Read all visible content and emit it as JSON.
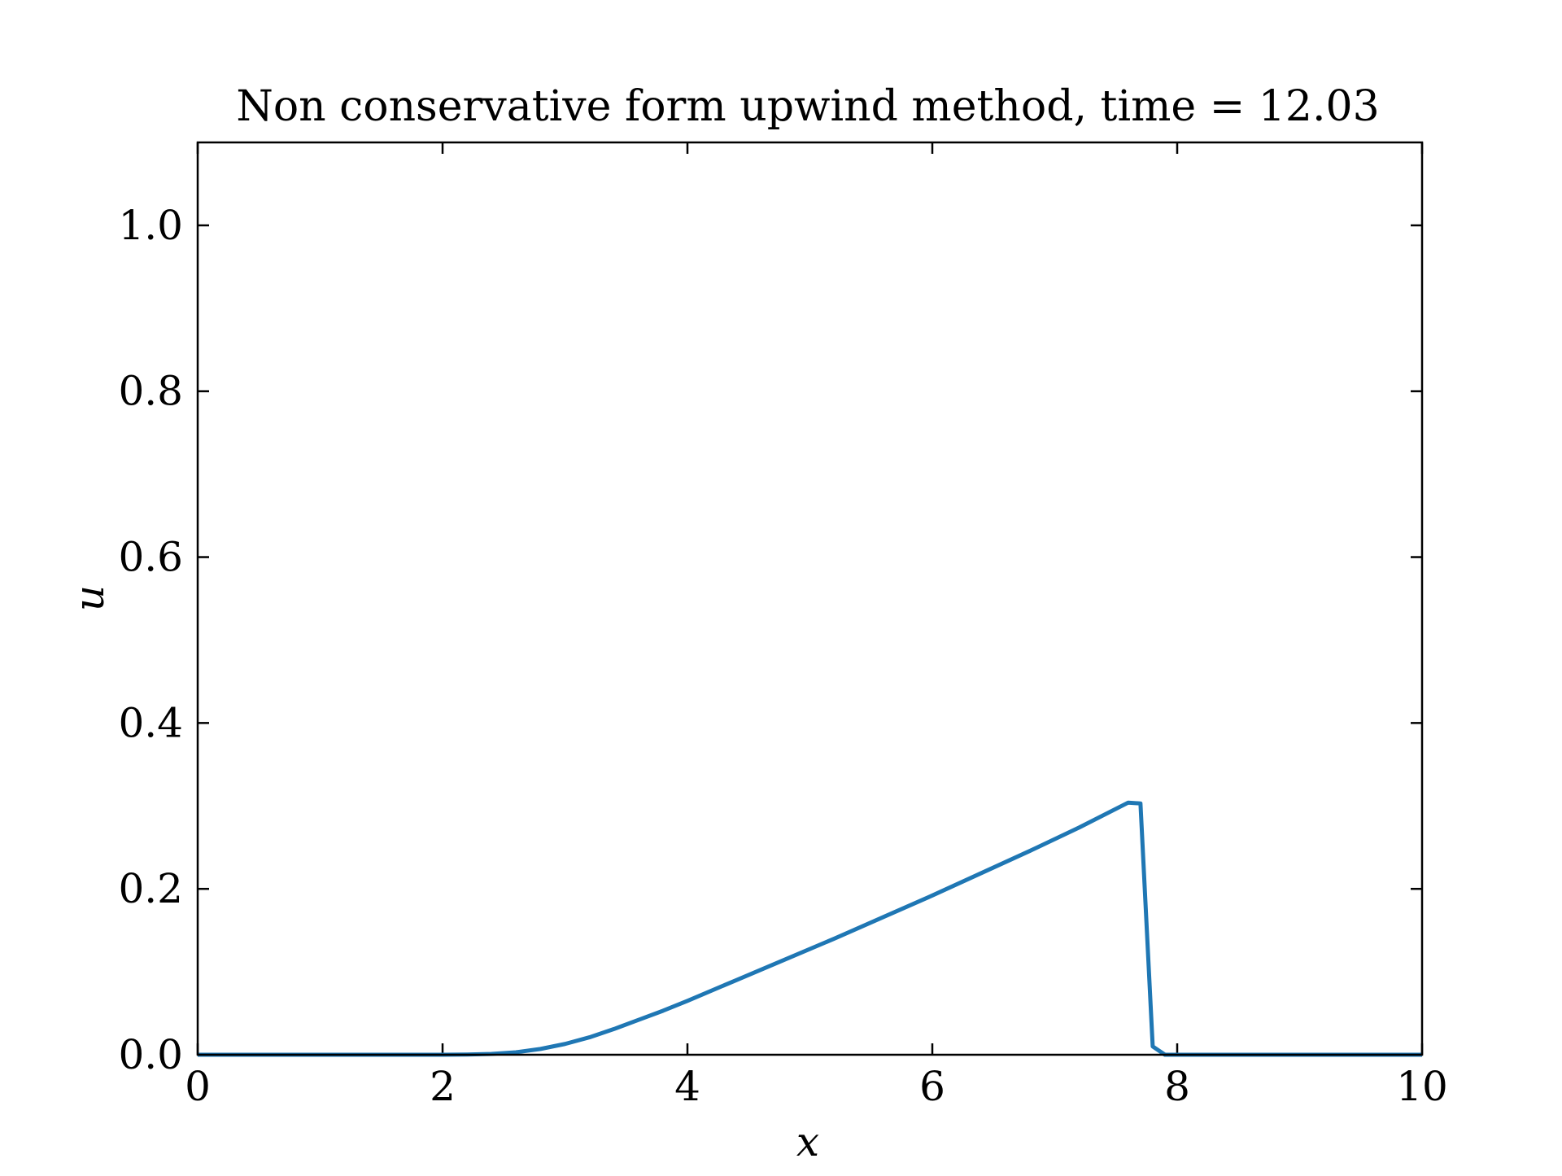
{
  "chart_data": {
    "type": "line",
    "title": "Non conservative form upwind method, time = 12.03",
    "xlabel": "x",
    "ylabel": "u",
    "xlim": [
      0,
      10
    ],
    "ylim": [
      0,
      1.1
    ],
    "x_ticks": [
      0,
      2,
      4,
      6,
      8,
      10
    ],
    "x_tick_labels": [
      "0",
      "2",
      "4",
      "6",
      "8",
      "10"
    ],
    "y_ticks": [
      0.0,
      0.2,
      0.4,
      0.6,
      0.8,
      1.0
    ],
    "y_tick_labels": [
      "0.0",
      "0.2",
      "0.4",
      "0.6",
      "0.8",
      "1.0"
    ],
    "grid": false,
    "legend": "none",
    "series": [
      {
        "color": "#1f77b4",
        "x": [
          0,
          1.0,
          2.0,
          2.2,
          2.4,
          2.6,
          2.8,
          3.0,
          3.2,
          3.4,
          3.6,
          3.8,
          4.0,
          4.4,
          4.8,
          5.2,
          5.6,
          6.0,
          6.4,
          6.8,
          7.2,
          7.6,
          7.7,
          7.8,
          7.9,
          8.0,
          9.0,
          10.0
        ],
        "y": [
          0,
          0,
          0,
          0.0003,
          0.001,
          0.003,
          0.007,
          0.013,
          0.021,
          0.031,
          0.042,
          0.053,
          0.065,
          0.09,
          0.115,
          0.14,
          0.166,
          0.192,
          0.219,
          0.246,
          0.274,
          0.304,
          0.303,
          0.01,
          0,
          0,
          0,
          0
        ]
      }
    ]
  }
}
